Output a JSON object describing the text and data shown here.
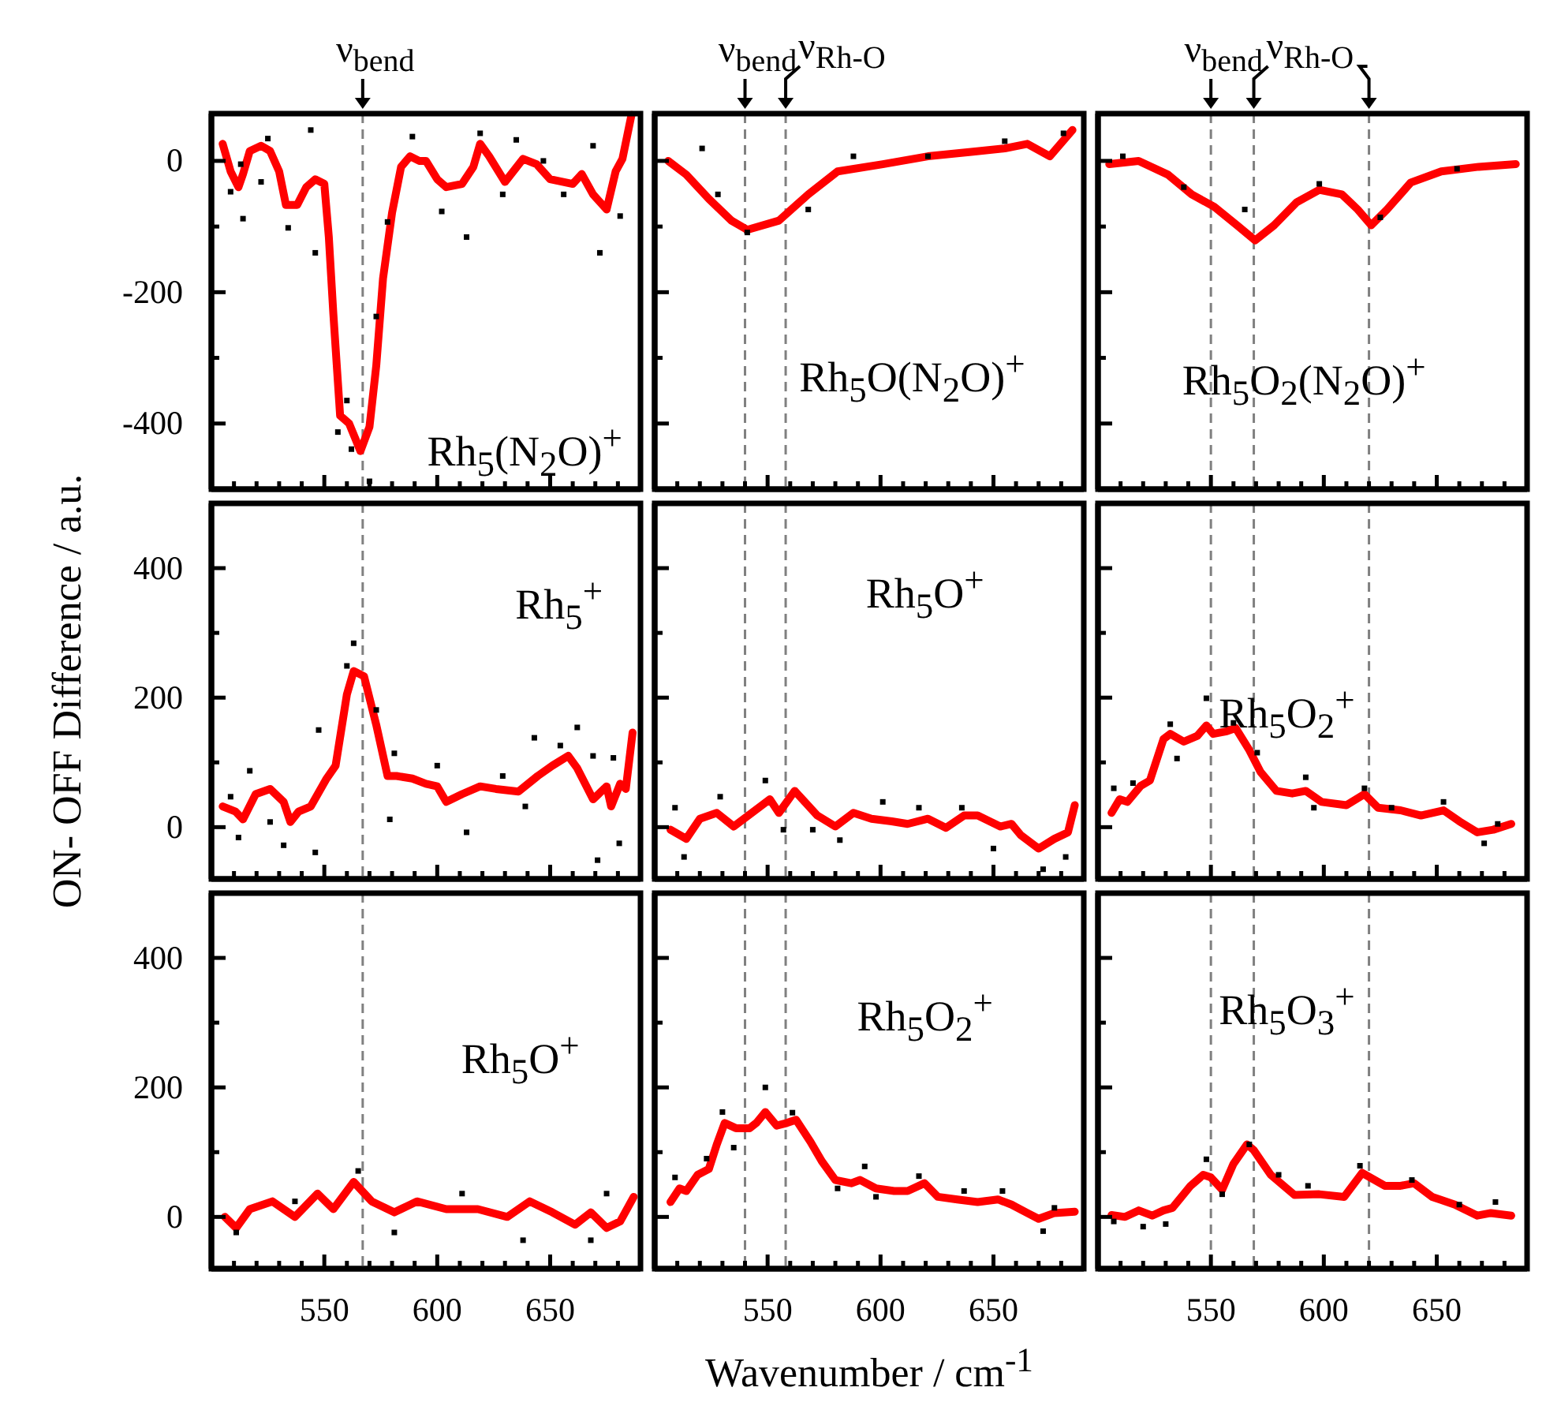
{
  "chart_data": [
    {
      "type": "line",
      "title": "Rh$_{5}$(N$_{2}$O)$^{+}$",
      "xlim": [
        500,
        690
      ],
      "ylim": [
        -500,
        72
      ],
      "xticks": [
        {
          "value": 510,
          "label": null
        },
        {
          "value": 520,
          "label": null
        },
        {
          "value": 530,
          "label": null
        },
        {
          "value": 540,
          "label": null
        },
        550,
        {
          "value": 560,
          "label": null
        },
        {
          "value": 570,
          "label": null
        },
        {
          "value": 580,
          "label": null
        },
        {
          "value": 590,
          "label": null
        },
        600,
        {
          "value": 610,
          "label": null
        },
        {
          "value": 620,
          "label": null
        },
        {
          "value": 630,
          "label": null
        },
        {
          "value": 640,
          "label": null
        },
        650,
        {
          "value": 660,
          "label": null
        },
        {
          "value": 670,
          "label": null
        },
        {
          "value": 680,
          "label": null
        }
      ],
      "yticks": [
        -400,
        {
          "value": -300,
          "label": null
        },
        -200,
        {
          "value": -100,
          "label": null
        },
        0
      ],
      "tick_labels": "y",
      "ref_lines": [
        {
          "axis": "x",
          "value": 567,
          "label": "ν$_{bend}$",
          "color": "#808080",
          "line_style": "dashed"
        }
      ],
      "series": [
        {
          "type": "line",
          "color": "#ff0000",
          "x": [
            505,
            508.5,
            512,
            514,
            517,
            522,
            526,
            530,
            533,
            538,
            542,
            546,
            550,
            552,
            554,
            557,
            561,
            566,
            570,
            573,
            576,
            580,
            584,
            588,
            592,
            595,
            600,
            604,
            611,
            616,
            619,
            623,
            630,
            638,
            644,
            650,
            660,
            664,
            669,
            675,
            679,
            682,
            686
          ],
          "values": [
            26,
            -16,
            -40,
            -20,
            15,
            23,
            15,
            -16,
            -67,
            -67,
            -40,
            -28,
            -35,
            -116,
            -233,
            -388,
            -400,
            -442,
            -405,
            -312,
            -179,
            -79,
            -9,
            7,
            0,
            0,
            -28,
            -40,
            -35,
            -9,
            26,
            7,
            -32,
            3,
            -5,
            -28,
            -35,
            -20,
            -51,
            -74,
            -16,
            3,
            70
          ]
        },
        {
          "type": "scatter",
          "color": "#000000",
          "marker": "square",
          "x": [
            508.5,
            513,
            514,
            522,
            525,
            534,
            544,
            546,
            556,
            560,
            562,
            570,
            573,
            578,
            589,
            602,
            613,
            619,
            629,
            635,
            647,
            656,
            669,
            672,
            681
          ],
          "values": [
            -47,
            -5,
            -88,
            -32,
            34,
            -102,
            47,
            -140,
            -413,
            -365,
            -439,
            -488,
            -237,
            -93,
            37,
            -77,
            -116,
            42,
            -51,
            32,
            0,
            -51,
            23,
            -140,
            -84
          ]
        }
      ]
    },
    {
      "type": "line",
      "title": "Rh$_{5}$O(N$_{2}$O)$^{+}$",
      "xlim": [
        500,
        690
      ],
      "ylim": [
        -500,
        72
      ],
      "xticks": [
        {
          "value": 510,
          "label": null
        },
        {
          "value": 520,
          "label": null
        },
        {
          "value": 530,
          "label": null
        },
        {
          "value": 540,
          "label": null
        },
        550,
        {
          "value": 560,
          "label": null
        },
        {
          "value": 570,
          "label": null
        },
        {
          "value": 580,
          "label": null
        },
        {
          "value": 590,
          "label": null
        },
        600,
        {
          "value": 610,
          "label": null
        },
        {
          "value": 620,
          "label": null
        },
        {
          "value": 630,
          "label": null
        },
        {
          "value": 640,
          "label": null
        },
        650,
        {
          "value": 660,
          "label": null
        },
        {
          "value": 670,
          "label": null
        },
        {
          "value": 680,
          "label": null
        }
      ],
      "yticks": [
        -400,
        {
          "value": -300,
          "label": null
        },
        -200,
        {
          "value": -100,
          "label": null
        },
        0
      ],
      "tick_labels": false,
      "ref_lines": [
        {
          "axis": "x",
          "value": 540,
          "label": "ν$_{bend}$",
          "color": "#808080",
          "line_style": "dashed"
        },
        {
          "axis": "x",
          "value": 558,
          "label": "ν$_{Rh-O}$",
          "color": "#808080",
          "line_style": "dashed"
        }
      ],
      "series": [
        {
          "type": "line",
          "color": "#ff0000",
          "x": [
            506,
            514,
            524,
            534,
            541,
            555,
            568,
            581,
            601,
            621,
            641,
            655,
            665,
            675,
            685
          ],
          "values": [
            0,
            -21,
            -58,
            -91,
            -105,
            -91,
            -51,
            -16,
            -5,
            7,
            14,
            19,
            26,
            7,
            47
          ]
        },
        {
          "type": "scatter",
          "color": "#000000",
          "marker": "square",
          "x": [
            521,
            528,
            541,
            568,
            588,
            621,
            655,
            681
          ],
          "values": [
            19,
            -51,
            -109,
            -74,
            7,
            7,
            30,
            42
          ]
        }
      ]
    },
    {
      "type": "line",
      "title": "Rh$_{5}$O$_{2}$(N$_{2}$O)$^{+}$",
      "xlim": [
        500,
        690
      ],
      "ylim": [
        -500,
        72
      ],
      "xticks": [
        {
          "value": 510,
          "label": null
        },
        {
          "value": 520,
          "label": null
        },
        {
          "value": 530,
          "label": null
        },
        {
          "value": 540,
          "label": null
        },
        550,
        {
          "value": 560,
          "label": null
        },
        {
          "value": 570,
          "label": null
        },
        {
          "value": 580,
          "label": null
        },
        {
          "value": 590,
          "label": null
        },
        600,
        {
          "value": 610,
          "label": null
        },
        {
          "value": 620,
          "label": null
        },
        {
          "value": 630,
          "label": null
        },
        {
          "value": 640,
          "label": null
        },
        650,
        {
          "value": 660,
          "label": null
        },
        {
          "value": 670,
          "label": null
        },
        {
          "value": 680,
          "label": null
        }
      ],
      "yticks": [
        -400,
        {
          "value": -300,
          "label": null
        },
        -200,
        {
          "value": -100,
          "label": null
        },
        0
      ],
      "tick_labels": false,
      "ref_lines": [
        {
          "axis": "x",
          "value": 550,
          "label": "ν$_{bend}$",
          "color": "#808080",
          "line_style": "dashed"
        },
        {
          "axis": "x",
          "value": 569,
          "label": "ν$_{Rh-O}$",
          "color": "#808080",
          "line_style": "dashed"
        },
        {
          "axis": "x",
          "value": 620,
          "label": null,
          "color": "#808080",
          "line_style": "dashed"
        }
      ],
      "series": [
        {
          "type": "line",
          "color": "#ff0000",
          "x": [
            505,
            518,
            531,
            541.5,
            551.5,
            561.5,
            569.6,
            578,
            588,
            598,
            608,
            615,
            621,
            628,
            638.5,
            652,
            668.6,
            685
          ],
          "values": [
            -5,
            0,
            -21,
            -51,
            -70,
            -98,
            -121,
            -98,
            -63,
            -44,
            -51,
            -74,
            -98,
            -74,
            -33,
            -16,
            -9,
            -5
          ]
        },
        {
          "type": "scatter",
          "color": "#000000",
          "marker": "square",
          "x": [
            511,
            538,
            565,
            598,
            625,
            659
          ],
          "values": [
            7,
            -40,
            -74,
            -35,
            -86,
            -12
          ]
        }
      ]
    },
    {
      "type": "line",
      "title": "Rh$_{5}$$^{+}$",
      "ylabel": "ON- OFF Difference / a.u.",
      "xlim": [
        500,
        690
      ],
      "ylim": [
        -80,
        500
      ],
      "xticks": [
        {
          "value": 510,
          "label": null
        },
        {
          "value": 520,
          "label": null
        },
        {
          "value": 530,
          "label": null
        },
        {
          "value": 540,
          "label": null
        },
        550,
        {
          "value": 560,
          "label": null
        },
        {
          "value": 570,
          "label": null
        },
        {
          "value": 580,
          "label": null
        },
        {
          "value": 590,
          "label": null
        },
        600,
        {
          "value": 610,
          "label": null
        },
        {
          "value": 620,
          "label": null
        },
        {
          "value": 630,
          "label": null
        },
        {
          "value": 640,
          "label": null
        },
        650,
        {
          "value": 660,
          "label": null
        },
        {
          "value": 670,
          "label": null
        },
        {
          "value": 680,
          "label": null
        }
      ],
      "yticks": [
        0,
        {
          "value": 100,
          "label": null
        },
        200,
        {
          "value": 300,
          "label": null
        },
        400
      ],
      "tick_labels": "y",
      "ref_lines": [
        {
          "axis": "x",
          "value": 567,
          "label": null,
          "color": "#808080",
          "line_style": "dashed"
        }
      ],
      "series": [
        {
          "type": "line",
          "color": "#ff0000",
          "x": [
            505,
            510.7,
            514,
            519.6,
            526,
            532,
            535,
            538.6,
            544,
            551,
            555,
            560,
            563,
            567.6,
            573,
            578,
            582,
            589,
            595,
            600,
            604,
            611,
            619,
            626,
            636,
            644.5,
            651,
            658,
            662,
            669,
            675,
            677,
            681,
            683.5,
            686.5
          ],
          "values": [
            32,
            24,
            12,
            51,
            59,
            39,
            8,
            24,
            32,
            75,
            95,
            205,
            241,
            233,
            158,
            79,
            79,
            75,
            67,
            63,
            39,
            51,
            63,
            59,
            55,
            79,
            95,
            110,
            91,
            43,
            63,
            32,
            67,
            59,
            146
          ]
        },
        {
          "type": "scatter",
          "color": "#000000",
          "marker": "square",
          "x": [
            508.5,
            512,
            517,
            526,
            532,
            546,
            547.5,
            563,
            560,
            573,
            579,
            581,
            600,
            613,
            629,
            639,
            643,
            654.5,
            662,
            669,
            671,
            678,
            680.6
          ],
          "values": [
            47,
            -16,
            87,
            8,
            -28,
            -39,
            150,
            284,
            249,
            181,
            12,
            114,
            95,
            -8,
            79,
            32,
            138,
            126,
            154,
            110,
            -51,
            107,
            -25
          ]
        }
      ]
    },
    {
      "type": "line",
      "title": "Rh$_{5}$O$^{+}$",
      "xlim": [
        500,
        690
      ],
      "ylim": [
        -80,
        500
      ],
      "xticks": [
        {
          "value": 510,
          "label": null
        },
        {
          "value": 520,
          "label": null
        },
        {
          "value": 530,
          "label": null
        },
        {
          "value": 540,
          "label": null
        },
        550,
        {
          "value": 560,
          "label": null
        },
        {
          "value": 570,
          "label": null
        },
        {
          "value": 580,
          "label": null
        },
        {
          "value": 590,
          "label": null
        },
        600,
        {
          "value": 610,
          "label": null
        },
        {
          "value": 620,
          "label": null
        },
        {
          "value": 630,
          "label": null
        },
        {
          "value": 640,
          "label": null
        },
        650,
        {
          "value": 660,
          "label": null
        },
        {
          "value": 670,
          "label": null
        },
        {
          "value": 680,
          "label": null
        }
      ],
      "yticks": [
        0,
        {
          "value": 100,
          "label": null
        },
        200,
        {
          "value": 300,
          "label": null
        },
        400
      ],
      "tick_labels": false,
      "ref_lines": [
        {
          "axis": "x",
          "value": 540,
          "label": null,
          "color": "#808080",
          "line_style": "dashed"
        },
        {
          "axis": "x",
          "value": 558,
          "label": null,
          "color": "#808080",
          "line_style": "dashed"
        }
      ],
      "series": [
        {
          "type": "line",
          "color": "#ff0000",
          "x": [
            507,
            514,
            520,
            527.5,
            535,
            543,
            551,
            555,
            562,
            572,
            580,
            588,
            596,
            605,
            612,
            621,
            629,
            637,
            643,
            653,
            658,
            662,
            670,
            677,
            683,
            686
          ],
          "values": [
            -4,
            -18,
            13,
            22,
            1,
            22,
            43,
            22,
            56,
            18,
            1,
            22,
            13,
            9,
            5,
            13,
            -1,
            18,
            18,
            1,
            5,
            -12,
            -33,
            -18,
            -8,
            34
          ]
        },
        {
          "type": "scatter",
          "color": "#000000",
          "marker": "square",
          "x": [
            509,
            513,
            529,
            549,
            557,
            570,
            582,
            601,
            617,
            636,
            650,
            672,
            682
          ],
          "values": [
            30,
            -46,
            47,
            72,
            -4,
            -4,
            -20,
            39,
            30,
            30,
            -33,
            -65,
            -46
          ]
        }
      ]
    },
    {
      "type": "line",
      "title": "Rh$_{5}$O$_{2}$$^{+}$",
      "xlim": [
        500,
        690
      ],
      "ylim": [
        -80,
        500
      ],
      "xticks": [
        {
          "value": 510,
          "label": null
        },
        {
          "value": 520,
          "label": null
        },
        {
          "value": 530,
          "label": null
        },
        {
          "value": 540,
          "label": null
        },
        550,
        {
          "value": 560,
          "label": null
        },
        {
          "value": 570,
          "label": null
        },
        {
          "value": 580,
          "label": null
        },
        {
          "value": 590,
          "label": null
        },
        600,
        {
          "value": 610,
          "label": null
        },
        {
          "value": 620,
          "label": null
        },
        {
          "value": 630,
          "label": null
        },
        {
          "value": 640,
          "label": null
        },
        650,
        {
          "value": 660,
          "label": null
        },
        {
          "value": 670,
          "label": null
        },
        {
          "value": 680,
          "label": null
        }
      ],
      "yticks": [
        0,
        {
          "value": 100,
          "label": null
        },
        200,
        {
          "value": 300,
          "label": null
        },
        400
      ],
      "tick_labels": false,
      "ref_lines": [
        {
          "axis": "x",
          "value": 550,
          "label": null,
          "color": "#808080",
          "line_style": "dashed"
        },
        {
          "axis": "x",
          "value": 569,
          "label": null,
          "color": "#808080",
          "line_style": "dashed"
        },
        {
          "axis": "x",
          "value": 620,
          "label": null,
          "color": "#808080",
          "line_style": "dashed"
        }
      ],
      "series": [
        {
          "type": "line",
          "color": "#ff0000",
          "x": [
            506,
            509.6,
            513,
            519,
            523,
            529,
            532,
            538,
            544,
            548,
            551,
            557,
            561,
            567,
            572,
            579,
            586,
            592,
            599,
            610,
            618,
            624,
            634,
            643,
            653,
            660,
            668,
            675,
            683
          ],
          "values": [
            22,
            43,
            39,
            64,
            72,
            136,
            144,
            132,
            141,
            157,
            144,
            148,
            153,
            119,
            85,
            56,
            52,
            56,
            39,
            34,
            51,
            30,
            26,
            18,
            26,
            9,
            -8,
            -4,
            5
          ]
        },
        {
          "type": "scatter",
          "color": "#000000",
          "marker": "square",
          "x": [
            507,
            515.5,
            535,
            548,
            532,
            560,
            570.5,
            592,
            595.6,
            618,
            630,
            653,
            671,
            677
          ],
          "values": [
            60,
            68,
            106,
            199,
            159,
            161,
            115,
            77,
            30,
            60,
            30,
            39,
            -25,
            5
          ]
        }
      ]
    },
    {
      "type": "line",
      "title": "Rh$_{5}$O$^{+}$",
      "xlim": [
        500,
        690
      ],
      "ylim": [
        -80,
        500
      ],
      "xticks": [
        {
          "value": 510,
          "label": null
        },
        {
          "value": 520,
          "label": null
        },
        {
          "value": 530,
          "label": null
        },
        {
          "value": 540,
          "label": null
        },
        550,
        {
          "value": 560,
          "label": null
        },
        {
          "value": 570,
          "label": null
        },
        {
          "value": 580,
          "label": null
        },
        {
          "value": 590,
          "label": null
        },
        600,
        {
          "value": 610,
          "label": null
        },
        {
          "value": 620,
          "label": null
        },
        {
          "value": 630,
          "label": null
        },
        {
          "value": 640,
          "label": null
        },
        650,
        {
          "value": 660,
          "label": null
        },
        {
          "value": 670,
          "label": null
        },
        {
          "value": 680,
          "label": null
        }
      ],
      "yticks": [
        0,
        {
          "value": 100,
          "label": null
        },
        200,
        {
          "value": 300,
          "label": null
        },
        400
      ],
      "ref_lines": [
        {
          "axis": "x",
          "value": 567,
          "label": null,
          "color": "#808080",
          "line_style": "dashed"
        }
      ],
      "series": [
        {
          "type": "line",
          "color": "#ff0000",
          "x": [
            506,
            511,
            517,
            527,
            537,
            547,
            554,
            563,
            571,
            581,
            591,
            604,
            618,
            631,
            641,
            651,
            661,
            668,
            675,
            681,
            687
          ],
          "values": [
            0,
            -17,
            12,
            24,
            0,
            36,
            12,
            54,
            24,
            7,
            24,
            12,
            12,
            0,
            24,
            7,
            -12,
            7,
            -17,
            -7,
            31
          ]
        },
        {
          "type": "scatter",
          "color": "#000000",
          "marker": "square",
          "x": [
            511,
            537,
            565,
            581,
            611,
            638,
            668,
            675
          ],
          "values": [
            -24,
            24,
            71,
            -24,
            36,
            -36,
            -36,
            36
          ]
        }
      ]
    },
    {
      "type": "line",
      "title": "Rh$_{5}$O$_{2}$$^{+}$",
      "xlabel": "Wavenumber / cm$^{-1}$",
      "xlim": [
        500,
        690
      ],
      "ylim": [
        -80,
        500
      ],
      "xticks": [
        {
          "value": 510,
          "label": null
        },
        {
          "value": 520,
          "label": null
        },
        {
          "value": 530,
          "label": null
        },
        {
          "value": 540,
          "label": null
        },
        550,
        {
          "value": 560,
          "label": null
        },
        {
          "value": 570,
          "label": null
        },
        {
          "value": 580,
          "label": null
        },
        {
          "value": 590,
          "label": null
        },
        600,
        {
          "value": 610,
          "label": null
        },
        {
          "value": 620,
          "label": null
        },
        {
          "value": 630,
          "label": null
        },
        {
          "value": 640,
          "label": null
        },
        650,
        {
          "value": 660,
          "label": null
        },
        {
          "value": 670,
          "label": null
        },
        {
          "value": 680,
          "label": null
        }
      ],
      "yticks": [
        0,
        {
          "value": 100,
          "label": null
        },
        200,
        {
          "value": 300,
          "label": null
        },
        400
      ],
      "tick_labels": "x",
      "ref_lines": [
        {
          "axis": "x",
          "value": 540,
          "label": null,
          "color": "#808080",
          "line_style": "dashed"
        },
        {
          "axis": "x",
          "value": 558,
          "label": null,
          "color": "#808080",
          "line_style": "dashed"
        }
      ],
      "series": [
        {
          "type": "line",
          "color": "#ff0000",
          "x": [
            507,
            511,
            514,
            519,
            524,
            527.5,
            531,
            536,
            542,
            545,
            549,
            554,
            558.5,
            562.6,
            569,
            574,
            580,
            587,
            591,
            598,
            606,
            612,
            619.5,
            625.4,
            634,
            643,
            652,
            658,
            665,
            670,
            677,
            686
          ],
          "values": [
            23,
            44,
            40,
            65,
            74,
            112,
            145,
            137,
            137,
            145,
            162,
            141,
            145,
            150,
            116,
            86,
            57,
            52,
            57,
            44,
            40,
            40,
            52,
            31,
            27,
            23,
            27,
            19,
            6,
            -3,
            6,
            8
          ]
        },
        {
          "type": "scatter",
          "color": "#000000",
          "marker": "square",
          "x": [
            509,
            523,
            530,
            535,
            549,
            561,
            581,
            593,
            598,
            617,
            637,
            654,
            672,
            677
          ],
          "values": [
            61,
            90,
            162,
            107,
            200,
            161,
            44,
            78,
            31,
            63,
            40,
            40,
            -22,
            14
          ]
        }
      ]
    },
    {
      "type": "line",
      "title": "Rh$_{5}$O$_{3}$$^{+}$",
      "xlim": [
        500,
        690
      ],
      "ylim": [
        -80,
        500
      ],
      "xticks": [
        {
          "value": 510,
          "label": null
        },
        {
          "value": 520,
          "label": null
        },
        {
          "value": 530,
          "label": null
        },
        {
          "value": 540,
          "label": null
        },
        550,
        {
          "value": 560,
          "label": null
        },
        {
          "value": 570,
          "label": null
        },
        {
          "value": 580,
          "label": null
        },
        {
          "value": 590,
          "label": null
        },
        600,
        {
          "value": 610,
          "label": null
        },
        {
          "value": 620,
          "label": null
        },
        {
          "value": 630,
          "label": null
        },
        {
          "value": 640,
          "label": null
        },
        650,
        {
          "value": 660,
          "label": null
        },
        {
          "value": 670,
          "label": null
        },
        {
          "value": 680,
          "label": null
        }
      ],
      "yticks": [
        0,
        {
          "value": 100,
          "label": null
        },
        200,
        {
          "value": 300,
          "label": null
        },
        400
      ],
      "tick_labels": "x",
      "ref_lines": [
        {
          "axis": "x",
          "value": 550,
          "label": null,
          "color": "#808080",
          "line_style": "dashed"
        },
        {
          "axis": "x",
          "value": 569,
          "label": null,
          "color": "#808080",
          "line_style": "dashed"
        },
        {
          "axis": "x",
          "value": 620,
          "label": null,
          "color": "#808080",
          "line_style": "dashed"
        }
      ],
      "series": [
        {
          "type": "line",
          "color": "#ff0000",
          "x": [
            506,
            512,
            518,
            524,
            529,
            533,
            541,
            546.6,
            550,
            555,
            560,
            566,
            569,
            576.5,
            587,
            598,
            609,
            617,
            627,
            634,
            640,
            648,
            658,
            668,
            674,
            683
          ],
          "values": [
            3,
            0,
            10,
            2,
            10,
            14,
            48,
            65,
            61,
            42,
            82,
            112,
            103,
            65,
            34,
            35,
            31,
            68,
            48,
            48,
            52,
            31,
            19,
            2,
            6,
            2
          ]
        },
        {
          "type": "scatter",
          "color": "#000000",
          "marker": "square",
          "x": [
            507,
            520,
            530,
            548,
            555,
            567,
            580,
            593,
            616,
            639,
            660,
            676
          ],
          "values": [
            -7,
            -15,
            -11,
            89,
            35,
            112,
            65,
            48,
            79,
            57,
            19,
            23
          ]
        }
      ]
    }
  ]
}
